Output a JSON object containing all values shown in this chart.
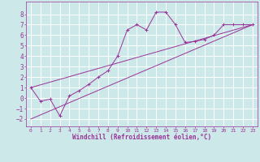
{
  "xlabel": "Windchill (Refroidissement éolien,°C)",
  "xlim": [
    -0.5,
    23.5
  ],
  "ylim": [
    -2.7,
    9.2
  ],
  "yticks": [
    -2,
    -1,
    0,
    1,
    2,
    3,
    4,
    5,
    6,
    7,
    8
  ],
  "xticks": [
    0,
    1,
    2,
    3,
    4,
    5,
    6,
    7,
    8,
    9,
    10,
    11,
    12,
    13,
    14,
    15,
    16,
    17,
    18,
    19,
    20,
    21,
    22,
    23
  ],
  "bg_color": "#cce8e8",
  "line_color": "#993399",
  "grid_color": "#aacccc",
  "line1_x": [
    0,
    1,
    2,
    3,
    4,
    5,
    6,
    7,
    8,
    9,
    10,
    11,
    12,
    13,
    14,
    15,
    16,
    17,
    18,
    19,
    20,
    21,
    22,
    23
  ],
  "line1_y": [
    1.0,
    -0.3,
    -0.1,
    -1.7,
    0.2,
    0.7,
    1.3,
    2.0,
    2.6,
    4.0,
    6.5,
    7.0,
    6.5,
    8.2,
    8.2,
    7.0,
    5.3,
    5.4,
    5.6,
    6.0,
    7.0,
    7.0,
    7.0,
    7.0
  ],
  "line2_x": [
    0,
    23
  ],
  "line2_y": [
    -2.0,
    7.0
  ],
  "line3_x": [
    0,
    23
  ],
  "line3_y": [
    1.0,
    7.0
  ]
}
